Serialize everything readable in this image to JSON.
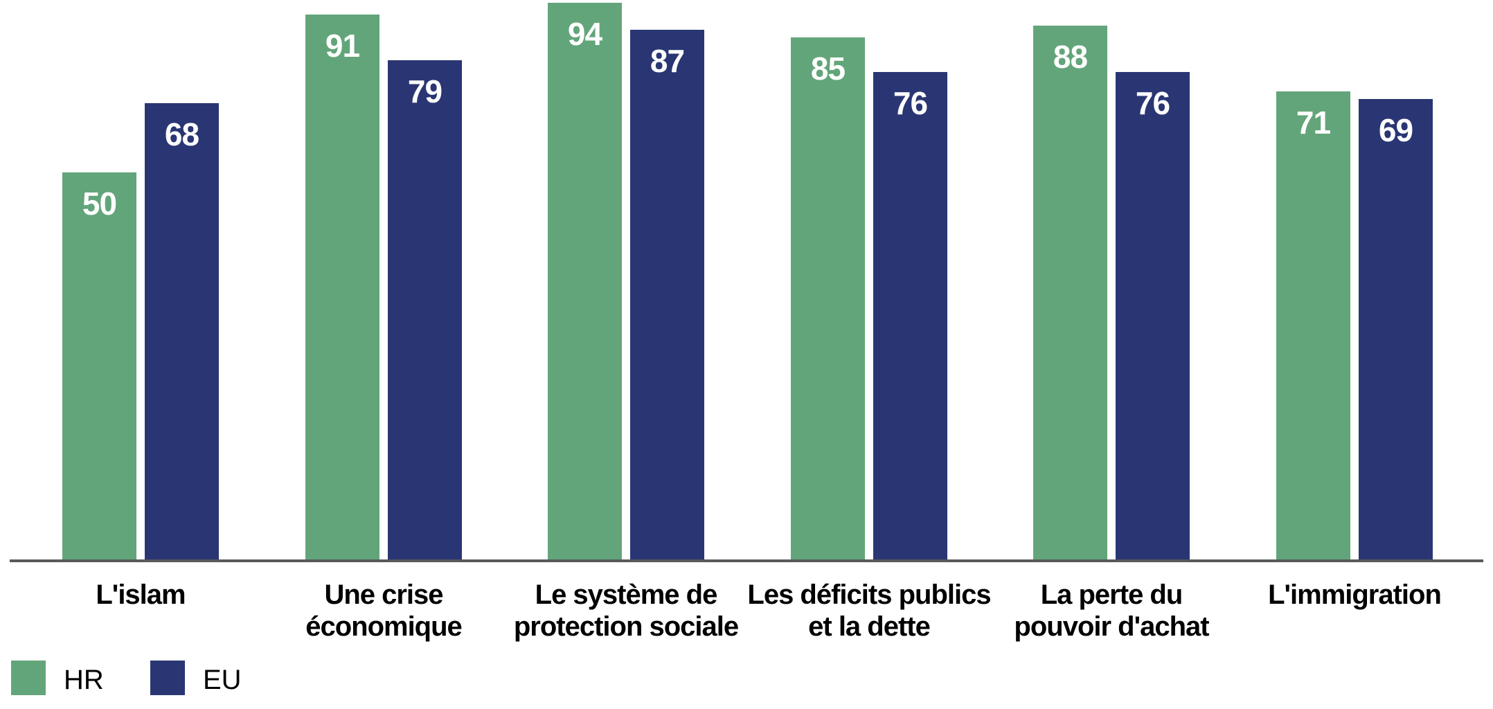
{
  "chart_data": {
    "type": "bar",
    "categories": [
      "L'islam",
      "Une crise\néconomique",
      "Le système de\nprotection sociale",
      "Les déficits publics\net la dette",
      "La perte du\npouvoir d'achat",
      "L'immigration"
    ],
    "series": [
      {
        "name": "HR",
        "color": "#63a57a",
        "values": [
          50,
          91,
          94,
          85,
          88,
          71
        ]
      },
      {
        "name": "EU",
        "color": "#2a3673",
        "values": [
          68,
          79,
          87,
          76,
          76,
          69
        ]
      }
    ],
    "xlabel": "",
    "ylabel": "",
    "ylim": [
      -50.5,
      94.7
    ],
    "grid": false,
    "legend_position": "bottom-left",
    "value_labels": "inside-top",
    "value_label_color": "#ffffff"
  },
  "colors": {
    "hr_green": "#63a57a",
    "eu_blue": "#2a3673",
    "axis_line": "#58595b",
    "label_text": "#000000",
    "background": "#ffffff"
  }
}
